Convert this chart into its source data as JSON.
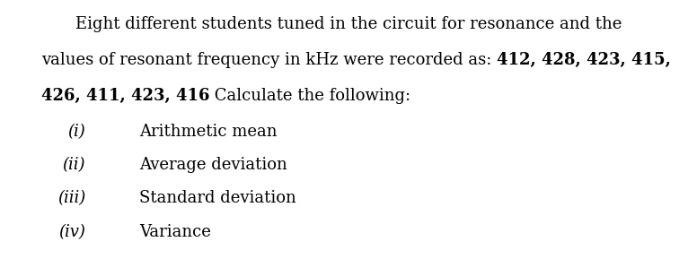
{
  "background_color": "#ffffff",
  "figsize": [
    7.76,
    2.89
  ],
  "dpi": 100,
  "fontsize": 13,
  "font_family": "DejaVu Serif",
  "line1": "Eight different students tuned in the circuit for resonance and the",
  "line2_normal": "values of resonant frequency in kHz were recorded as: ",
  "line2_bold": "412, 428, 423, 415,",
  "line3_bold": "426, 411, 423, 416",
  "line3_normal": " Calculate the following:",
  "items": [
    {
      "roman": "(i)",
      "text": "Arithmetic mean"
    },
    {
      "roman": "(ii)",
      "text": "Average deviation"
    },
    {
      "roman": "(iii)",
      "text": "Standard deviation"
    },
    {
      "roman": "(iv)",
      "text": "Variance"
    }
  ]
}
